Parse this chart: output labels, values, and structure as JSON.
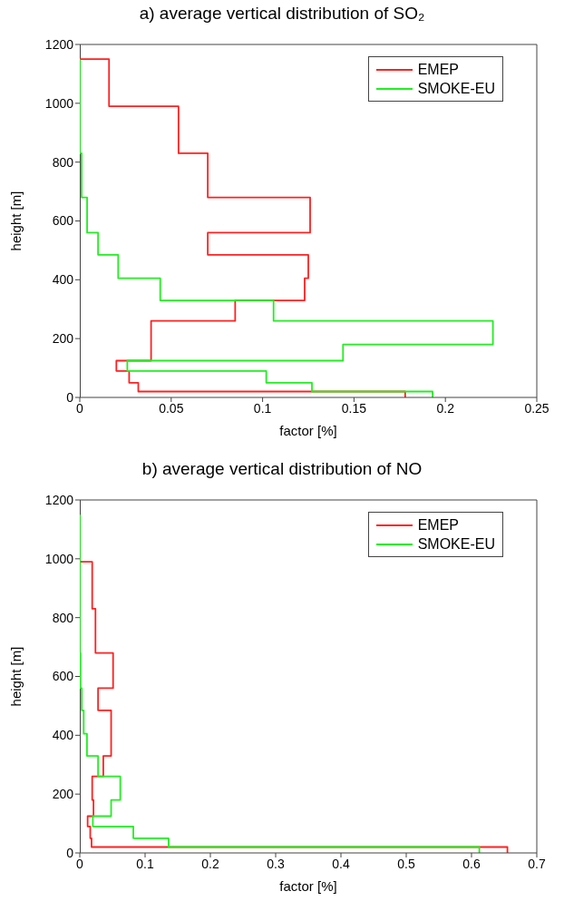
{
  "chart_data": [
    {
      "type": "line",
      "title": "a) average vertical distribution of SO₂",
      "xlabel": "factor [%]",
      "ylabel": "height [m]",
      "xlim": [
        0,
        0.25
      ],
      "xticks": [
        0,
        0.05,
        0.1,
        0.15,
        0.2,
        0.25
      ],
      "ylim": [
        0,
        1200
      ],
      "yticks": [
        0,
        200,
        400,
        600,
        800,
        1000,
        1200
      ],
      "grid": false,
      "legend": "top right",
      "marker": "none",
      "line_style": "solid",
      "series": [
        {
          "name": "EMEP",
          "color": "#ff2020",
          "x": [
            0.178,
            0.178,
            0.032,
            0.032,
            0.027,
            0.027,
            0.02,
            0.02,
            0.039,
            0.039,
            0.085,
            0.085,
            0.123,
            0.123,
            0.125,
            0.125,
            0.07,
            0.07,
            0.126,
            0.126,
            0.07,
            0.07,
            0.054,
            0.054,
            0.016,
            0.016,
            0
          ],
          "values": [
            0,
            20,
            20,
            50,
            50,
            90,
            90,
            125,
            125,
            260,
            260,
            330,
            330,
            405,
            405,
            485,
            485,
            560,
            560,
            680,
            680,
            830,
            830,
            990,
            990,
            1150,
            1150
          ]
        },
        {
          "name": "SMOKE-EU",
          "color": "#22ee22",
          "x": [
            0.193,
            0.193,
            0.127,
            0.127,
            0.102,
            0.102,
            0.026,
            0.026,
            0.144,
            0.144,
            0.226,
            0.226,
            0.106,
            0.106,
            0.044,
            0.044,
            0.021,
            0.021,
            0.01,
            0.01,
            0.004,
            0.004,
            0.001,
            0.001,
            0,
            0
          ],
          "values": [
            0,
            20,
            20,
            50,
            50,
            90,
            90,
            125,
            125,
            180,
            180,
            260,
            260,
            330,
            330,
            405,
            405,
            485,
            485,
            560,
            560,
            680,
            680,
            830,
            830,
            1150
          ]
        }
      ]
    },
    {
      "type": "line",
      "title": "b) average vertical distribution of NO",
      "xlabel": "factor [%]",
      "ylabel": "height [m]",
      "xlim": [
        0,
        0.7
      ],
      "xticks": [
        0,
        0.1,
        0.2,
        0.3,
        0.4,
        0.5,
        0.6,
        0.7
      ],
      "ylim": [
        0,
        1200
      ],
      "yticks": [
        0,
        200,
        400,
        600,
        800,
        1000,
        1200
      ],
      "grid": false,
      "legend": "top right",
      "marker": "none",
      "line_style": "solid",
      "series": [
        {
          "name": "EMEP",
          "color": "#ff2020",
          "x": [
            0.655,
            0.655,
            0.018,
            0.018,
            0.016,
            0.016,
            0.012,
            0.012,
            0.021,
            0.021,
            0.019,
            0.019,
            0.036,
            0.036,
            0.048,
            0.048,
            0.028,
            0.028,
            0.051,
            0.051,
            0.024,
            0.024,
            0.019,
            0.019,
            0
          ],
          "values": [
            0,
            20,
            20,
            50,
            50,
            90,
            90,
            125,
            125,
            180,
            180,
            260,
            260,
            330,
            330,
            485,
            485,
            560,
            560,
            680,
            680,
            830,
            830,
            990,
            990
          ]
        },
        {
          "name": "SMOKE-EU",
          "color": "#22ee22",
          "x": [
            0.612,
            0.612,
            0.136,
            0.136,
            0.082,
            0.082,
            0.02,
            0.02,
            0.048,
            0.048,
            0.062,
            0.062,
            0.028,
            0.028,
            0.011,
            0.011,
            0.006,
            0.006,
            0.003,
            0.003,
            0.001,
            0.001,
            0,
            0
          ],
          "values": [
            0,
            20,
            20,
            50,
            50,
            90,
            90,
            125,
            125,
            180,
            180,
            260,
            260,
            330,
            330,
            405,
            405,
            485,
            485,
            560,
            560,
            680,
            680,
            1150
          ]
        }
      ]
    }
  ]
}
